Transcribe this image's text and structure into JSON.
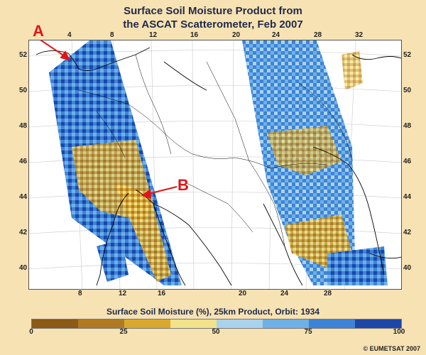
{
  "title": {
    "line1": "Surface Soil Moisture Product from",
    "line2": "the ASCAT Scatterometer, Feb 2007"
  },
  "axes": {
    "top_ticks": [
      "4",
      "8",
      "12",
      "16",
      "20",
      "24",
      "28",
      "32"
    ],
    "bottom_ticks": [
      "8",
      "12",
      "16",
      "20",
      "24",
      "28"
    ],
    "left_ticks": [
      "52",
      "50",
      "48",
      "46",
      "44",
      "42",
      "40"
    ],
    "right_ticks": [
      "52",
      "50",
      "48",
      "46",
      "44",
      "42",
      "40"
    ]
  },
  "markers": [
    {
      "label": "A",
      "name": "marker-a"
    },
    {
      "label": "B",
      "name": "marker-b"
    }
  ],
  "colorbar": {
    "caption": "Surface Soil Moisture (%), 25km Product, Orbit: 1934",
    "ticks": [
      "0",
      "25",
      "50",
      "75",
      "100"
    ],
    "colors": [
      "#8b5a16",
      "#b07a22",
      "#d9a92f",
      "#f2e28c",
      "#a9d3ec",
      "#6fb0e6",
      "#3d83d8",
      "#1c47a8"
    ]
  },
  "copyright": "© EUMETSAT 2007",
  "colors": {
    "background": "#f7e2b3",
    "marker": "#e01616",
    "coastline": "#000000"
  }
}
